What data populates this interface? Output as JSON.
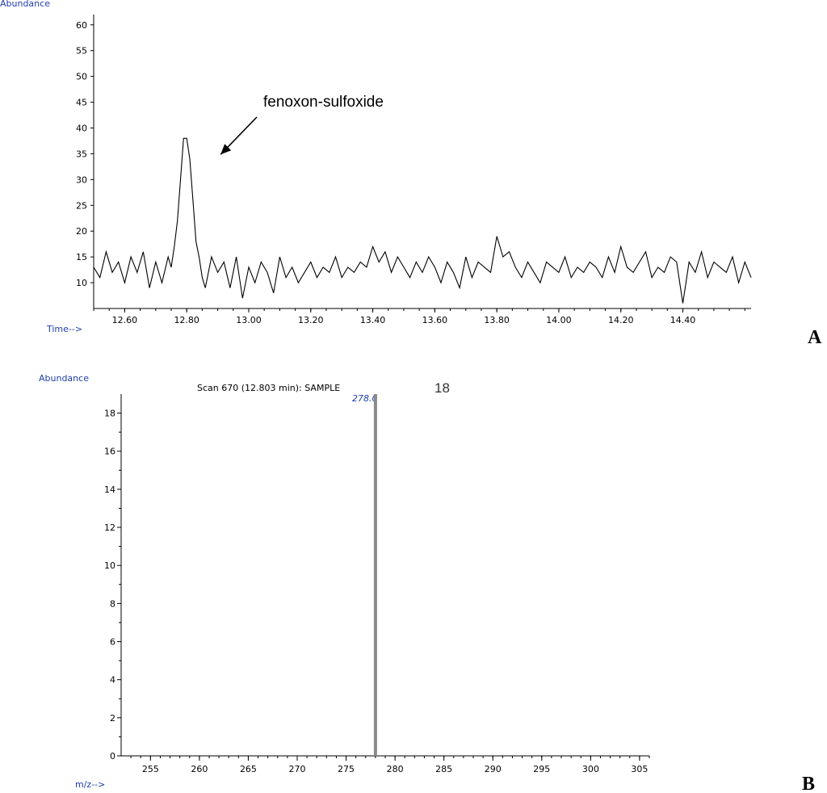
{
  "chart_data": [
    {
      "panel": "A",
      "type": "line",
      "ylabel": "Abundance",
      "xlabel": "Time-->",
      "xlim": [
        12.5,
        14.62
      ],
      "ylim": [
        5,
        62
      ],
      "x_ticks": [
        "12.60",
        "12.80",
        "13.00",
        "13.20",
        "13.40",
        "13.60",
        "13.80",
        "14.00",
        "14.20",
        "14.40"
      ],
      "y_ticks": [
        "10",
        "15",
        "20",
        "25",
        "30",
        "35",
        "40",
        "45",
        "50",
        "55",
        "60"
      ],
      "annotation": "fenoxon-sulfoxide",
      "annotation_x": 12.8,
      "series": [
        {
          "x": [
            12.5,
            12.52,
            12.54,
            12.56,
            12.58,
            12.6,
            12.62,
            12.64,
            12.66,
            12.68,
            12.7,
            12.72,
            12.74,
            12.75,
            12.76,
            12.77,
            12.78,
            12.79,
            12.8,
            12.81,
            12.82,
            12.83,
            12.84,
            12.85,
            12.86,
            12.88,
            12.9,
            12.92,
            12.94,
            12.96,
            12.98,
            13.0,
            13.02,
            13.04,
            13.06,
            13.08,
            13.1,
            13.12,
            13.14,
            13.16,
            13.18,
            13.2,
            13.22,
            13.24,
            13.26,
            13.28,
            13.3,
            13.32,
            13.34,
            13.36,
            13.38,
            13.4,
            13.42,
            13.44,
            13.46,
            13.48,
            13.5,
            13.52,
            13.54,
            13.56,
            13.58,
            13.6,
            13.62,
            13.64,
            13.66,
            13.68,
            13.7,
            13.72,
            13.74,
            13.76,
            13.78,
            13.8,
            13.82,
            13.84,
            13.86,
            13.88,
            13.9,
            13.92,
            13.94,
            13.96,
            13.98,
            14.0,
            14.02,
            14.04,
            14.06,
            14.08,
            14.1,
            14.12,
            14.14,
            14.16,
            14.18,
            14.2,
            14.22,
            14.24,
            14.26,
            14.28,
            14.3,
            14.32,
            14.34,
            14.36,
            14.38,
            14.4,
            14.42,
            14.44,
            14.46,
            14.48,
            14.5,
            14.52,
            14.54,
            14.56,
            14.58,
            14.6,
            14.62
          ],
          "values": [
            13,
            11,
            16,
            12,
            14,
            10,
            15,
            12,
            16,
            9,
            14,
            10,
            15,
            13,
            17,
            22,
            30,
            38,
            38,
            34,
            26,
            18,
            15,
            11,
            9,
            15,
            12,
            14,
            9,
            15,
            7,
            13,
            10,
            14,
            12,
            8,
            15,
            11,
            13,
            10,
            12,
            14,
            11,
            13,
            12,
            15,
            11,
            13,
            12,
            14,
            13,
            17,
            14,
            16,
            12,
            15,
            13,
            11,
            14,
            12,
            15,
            13,
            10,
            14,
            12,
            9,
            15,
            11,
            14,
            13,
            12,
            19,
            15,
            16,
            13,
            11,
            14,
            12,
            10,
            14,
            13,
            12,
            15,
            11,
            13,
            12,
            14,
            13,
            11,
            15,
            12,
            17,
            13,
            12,
            14,
            16,
            11,
            13,
            12,
            15,
            14,
            6,
            14,
            12,
            16,
            11,
            14,
            13,
            12,
            15,
            10,
            14,
            11
          ]
        }
      ]
    },
    {
      "panel": "B",
      "type": "bar",
      "title": "Scan 670 (12.803 min): SAMPLE",
      "title_suffix": "18",
      "ylabel": "Abundance",
      "xlabel": "m/z-->",
      "xlim": [
        252,
        306
      ],
      "ylim": [
        0,
        19
      ],
      "x_ticks": [
        "255",
        "260",
        "265",
        "270",
        "275",
        "280",
        "285",
        "290",
        "295",
        "300",
        "305"
      ],
      "y_ticks": [
        "0",
        "2",
        "4",
        "6",
        "8",
        "10",
        "12",
        "14",
        "16",
        "18"
      ],
      "peaks": [
        {
          "x": 278.0,
          "y": 19
        }
      ],
      "peak_label": "278.0"
    }
  ],
  "panel_letters": {
    "a": "A",
    "b": "B"
  }
}
